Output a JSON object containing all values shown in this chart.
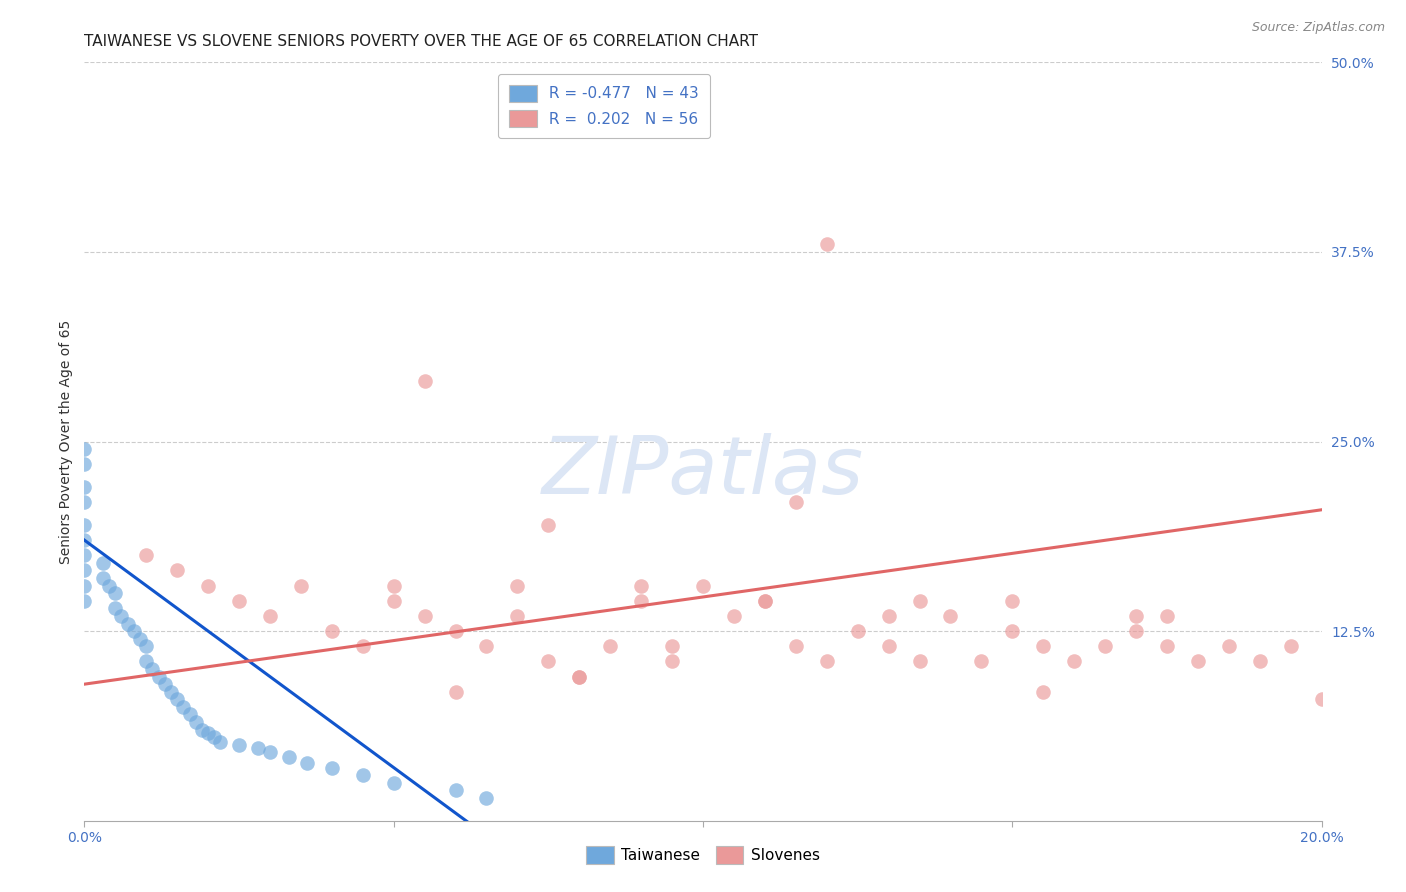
{
  "title": "TAIWANESE VS SLOVENE SENIORS POVERTY OVER THE AGE OF 65 CORRELATION CHART",
  "source": "Source: ZipAtlas.com",
  "ylabel": "Seniors Poverty Over the Age of 65",
  "xlim": [
    0.0,
    0.2
  ],
  "ylim": [
    0.0,
    0.5
  ],
  "xticks": [
    0.0,
    0.05,
    0.1,
    0.15,
    0.2
  ],
  "xtick_labels": [
    "0.0%",
    "",
    "",
    "",
    "20.0%"
  ],
  "ytick_labels_right": [
    "50.0%",
    "37.5%",
    "25.0%",
    "12.5%",
    ""
  ],
  "yticks_right": [
    0.5,
    0.375,
    0.25,
    0.125,
    0.0
  ],
  "grid_yticks": [
    0.5,
    0.375,
    0.25,
    0.125
  ],
  "color_taiwanese": "#6fa8dc",
  "color_slovene": "#ea9999",
  "color_taiwanese_line": "#1155cc",
  "color_slovene_line": "#e06666",
  "tw_line_x": [
    0.0,
    0.065
  ],
  "tw_line_y": [
    0.185,
    -0.01
  ],
  "sl_line_x": [
    0.0,
    0.2
  ],
  "sl_line_y": [
    0.09,
    0.205
  ],
  "taiwanese_x": [
    0.0,
    0.0,
    0.0,
    0.0,
    0.0,
    0.0,
    0.0,
    0.0,
    0.0,
    0.0,
    0.003,
    0.003,
    0.004,
    0.005,
    0.005,
    0.006,
    0.007,
    0.008,
    0.009,
    0.01,
    0.01,
    0.011,
    0.012,
    0.013,
    0.014,
    0.015,
    0.016,
    0.017,
    0.018,
    0.019,
    0.02,
    0.021,
    0.022,
    0.025,
    0.028,
    0.03,
    0.033,
    0.036,
    0.04,
    0.045,
    0.05,
    0.06,
    0.065
  ],
  "taiwanese_y": [
    0.245,
    0.235,
    0.22,
    0.21,
    0.195,
    0.185,
    0.175,
    0.165,
    0.155,
    0.145,
    0.17,
    0.16,
    0.155,
    0.15,
    0.14,
    0.135,
    0.13,
    0.125,
    0.12,
    0.115,
    0.105,
    0.1,
    0.095,
    0.09,
    0.085,
    0.08,
    0.075,
    0.07,
    0.065,
    0.06,
    0.058,
    0.055,
    0.052,
    0.05,
    0.048,
    0.045,
    0.042,
    0.038,
    0.035,
    0.03,
    0.025,
    0.02,
    0.015
  ],
  "slovene_x": [
    0.01,
    0.015,
    0.02,
    0.025,
    0.03,
    0.035,
    0.04,
    0.045,
    0.05,
    0.055,
    0.06,
    0.065,
    0.07,
    0.075,
    0.08,
    0.085,
    0.09,
    0.095,
    0.1,
    0.105,
    0.11,
    0.115,
    0.12,
    0.125,
    0.13,
    0.135,
    0.14,
    0.145,
    0.15,
    0.155,
    0.16,
    0.165,
    0.17,
    0.175,
    0.18,
    0.185,
    0.19,
    0.195,
    0.2,
    0.05,
    0.07,
    0.09,
    0.11,
    0.13,
    0.15,
    0.17,
    0.055,
    0.075,
    0.095,
    0.115,
    0.135,
    0.155,
    0.175,
    0.06,
    0.08,
    0.12
  ],
  "slovene_y": [
    0.175,
    0.165,
    0.155,
    0.145,
    0.135,
    0.155,
    0.125,
    0.115,
    0.145,
    0.135,
    0.125,
    0.115,
    0.155,
    0.105,
    0.095,
    0.115,
    0.145,
    0.105,
    0.155,
    0.135,
    0.145,
    0.115,
    0.105,
    0.125,
    0.115,
    0.145,
    0.135,
    0.105,
    0.125,
    0.115,
    0.105,
    0.115,
    0.125,
    0.115,
    0.105,
    0.115,
    0.105,
    0.115,
    0.08,
    0.155,
    0.135,
    0.155,
    0.145,
    0.135,
    0.145,
    0.135,
    0.29,
    0.195,
    0.115,
    0.21,
    0.105,
    0.085,
    0.135,
    0.085,
    0.095,
    0.38
  ],
  "background_color": "#ffffff",
  "title_fontsize": 11,
  "axis_label_fontsize": 10,
  "tick_fontsize": 10
}
